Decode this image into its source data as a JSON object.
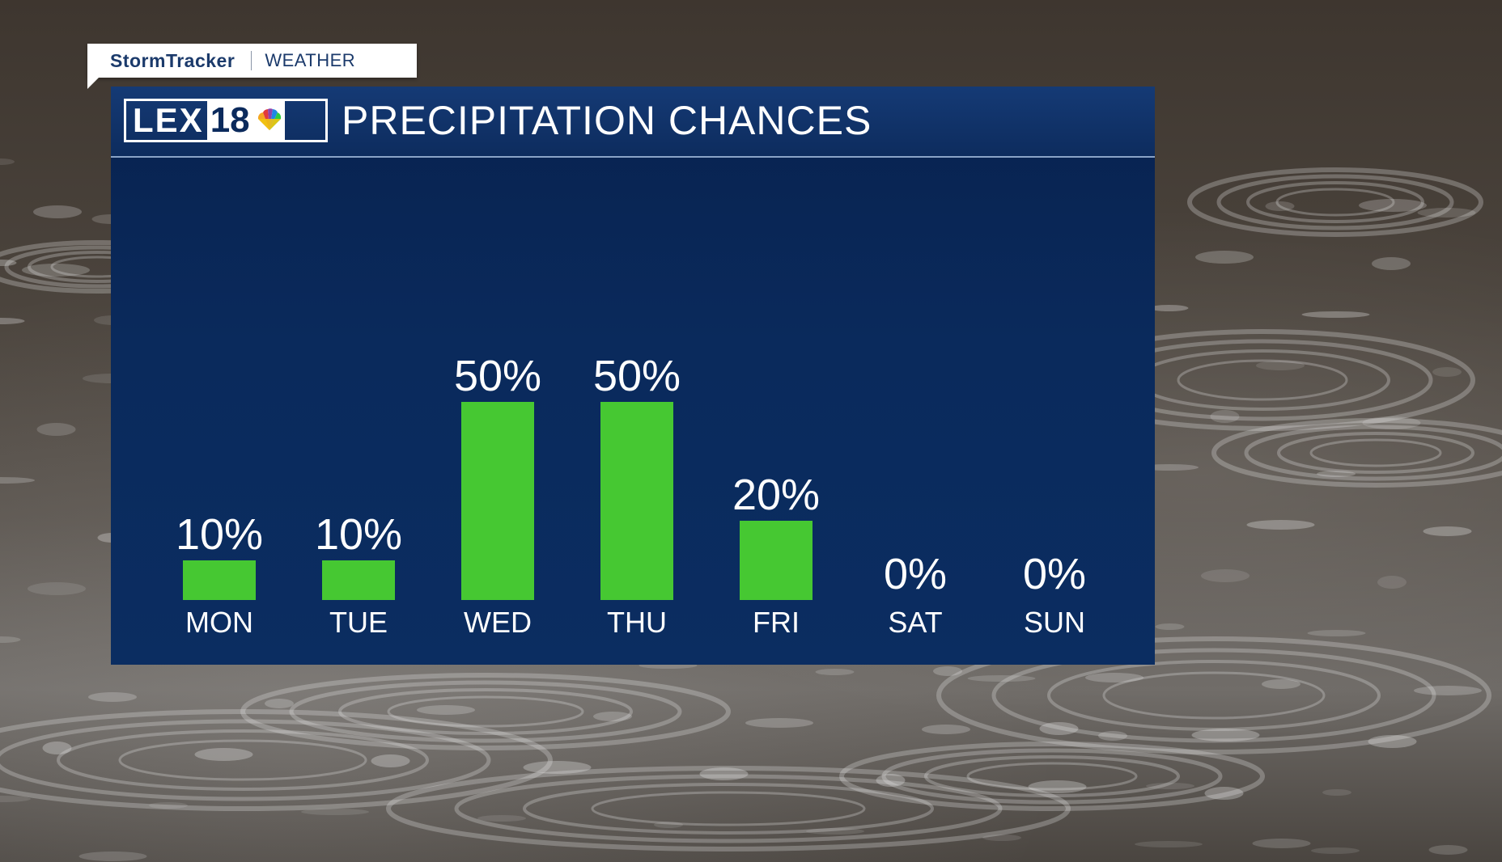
{
  "brand": {
    "name": "StormTracker",
    "section": "WEATHER"
  },
  "logo": {
    "text": "LEX",
    "number": "18"
  },
  "chart_data": {
    "type": "bar",
    "title": "PRECIPITATION CHANCES",
    "categories": [
      "MON",
      "TUE",
      "WED",
      "THU",
      "FRI",
      "SAT",
      "SUN"
    ],
    "values": [
      10,
      10,
      50,
      50,
      20,
      0,
      0
    ],
    "labels": [
      "10%",
      "10%",
      "50%",
      "50%",
      "20%",
      "0%",
      "0%"
    ],
    "unit": "%",
    "ylim": [
      0,
      50
    ],
    "grid": false,
    "legend": "none",
    "bar_color": "#46c832"
  },
  "colors": {
    "panel": "#0a2a5c",
    "accent": "#46c832",
    "text": "#ffffff"
  }
}
